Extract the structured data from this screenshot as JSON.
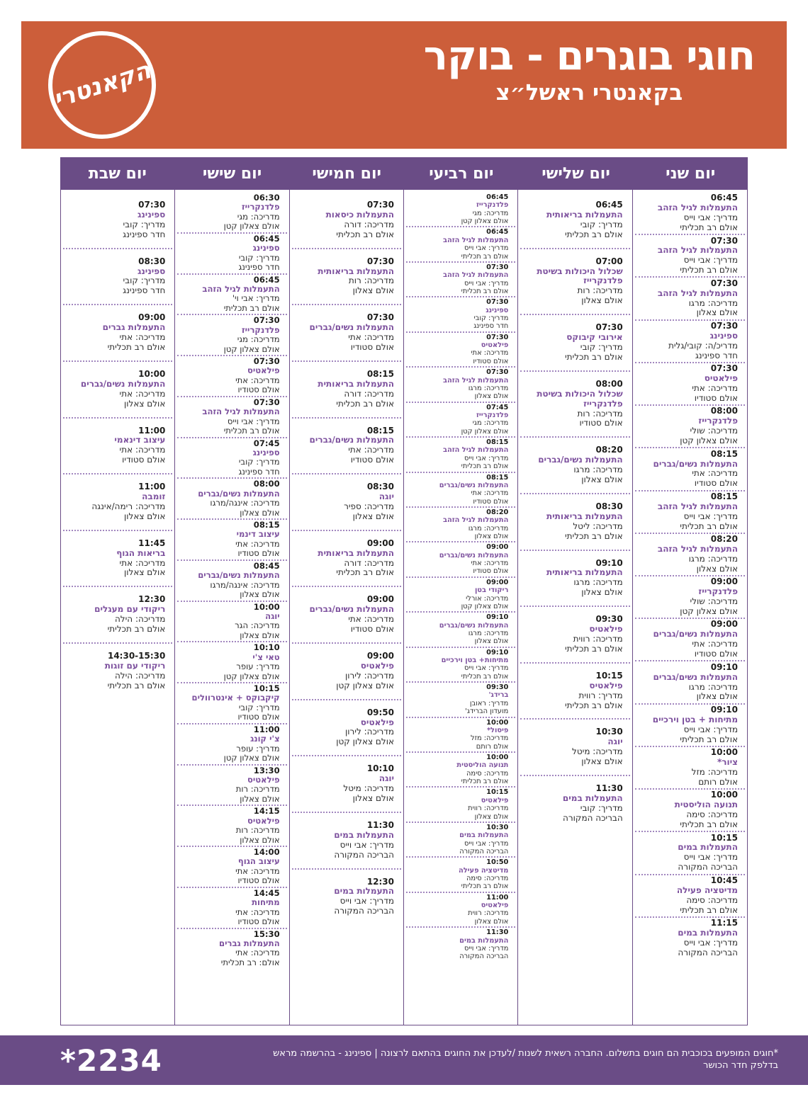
{
  "header": {
    "logo_text": "הקאנטרי",
    "title": "חוגי בוגרים - בוקר",
    "subtitle": "בקאנטרי ראשל״צ"
  },
  "colors": {
    "orange": "#cc5e3a",
    "purple": "#6a4c86",
    "title-purple": "#7d519e",
    "dot": "#a287bf",
    "ink": "#1d1d1b"
  },
  "schedule": {
    "days": [
      {
        "key": "monday",
        "label": "יום שני",
        "classes": [
          {
            "time": "06:45",
            "title": "התעמלות לגיל הזהב",
            "instructor": "מדריך: אבי וייס",
            "location": "אולם רב תכליתי"
          },
          {
            "time": "07:30",
            "title": "התעמלות לגיל הזהב",
            "instructor": "מדריך: אבי וייס",
            "location": "אולם רב תכליתי"
          },
          {
            "time": "07:30",
            "title": "התעמלות לגיל הזהב",
            "instructor": "מדריכה: מרגו",
            "location": "אולם צאלון"
          },
          {
            "time": "07:30",
            "title": "ספינינג",
            "instructor": "מדריכ/ה: קובי/גלית",
            "location": "חדר ספינינג"
          },
          {
            "time": "07:30",
            "title": "פילאטיס",
            "instructor": "מדריכה: אתי",
            "location": "אולם סטודיו"
          },
          {
            "time": "08:00",
            "title": "פלדנקרייז",
            "instructor": "מדריכה: שולי",
            "location": "אולם צאלון קטן"
          },
          {
            "time": "08:15",
            "title": "התעמלות נשים/גברים",
            "instructor": "מדריכה: אתי",
            "location": "אולם סטודיו"
          },
          {
            "time": "08:15",
            "title": "התעמלות לגיל הזהב",
            "instructor": "מדריך: אבי וייס",
            "location": "אולם רב תכליתי"
          },
          {
            "time": "08:20",
            "title": "התעמלות לגיל הזהב",
            "instructor": "מדריכה: מרגו",
            "location": "אולם צאלון"
          },
          {
            "time": "09:00",
            "title": "פלדנקרייז",
            "instructor": "מדריכה: שולי",
            "location": "אולם צאלון קטן"
          },
          {
            "time": "09:00",
            "title": "התעמלות נשים/גברים",
            "instructor": "מדריכה: אתי",
            "location": "אולם סטודיו"
          },
          {
            "time": "09:10",
            "title": "התעמלות נשים/גברים",
            "instructor": "מדריכה: מרגו",
            "location": "אולם צאלון"
          },
          {
            "time": "09:10",
            "title": "מתיחות + בטן וירכיים",
            "instructor": "מדריך: אבי וייס",
            "location": "אולם רב תכליתי"
          },
          {
            "time": "10:00",
            "title": "ציור*",
            "instructor": "מדריכה: מזל",
            "location": "אולם רותם"
          },
          {
            "time": "10:00",
            "title": "תנועה הוליסטית",
            "instructor": "מדריכה: סימה",
            "location": "אולם רב תכליתי"
          },
          {
            "time": "10:15",
            "title": "התעמלות במים",
            "instructor": "מדריך: אבי וייס",
            "location": "הבריכה המקורה"
          },
          {
            "time": "10:45",
            "title": "מדיטציה פעילה",
            "instructor": "מדריכה: סימה",
            "location": "אולם רב תכליתי"
          },
          {
            "time": "11:15",
            "title": "התעמלות במים",
            "instructor": "מדריך: אבי וייס",
            "location": "הבריכה המקורה"
          }
        ]
      },
      {
        "key": "tuesday",
        "label": "יום שלישי",
        "classes": [
          {
            "time": "06:45",
            "title": "התעמלות בריאותית",
            "instructor": "מדריך: קובי",
            "location": "אולם רב תכליתי"
          },
          {
            "time": "07:00",
            "title": "שכלול היכולות בשיטת פלדנקרייז",
            "instructor": "מדריכה: רות",
            "location": "אולם צאלון"
          },
          {
            "time": "07:30",
            "title": "אירובי קיבוקס",
            "instructor": "מדריך: קובי",
            "location": "אולם רב תכליתי"
          },
          {
            "time": "08:00",
            "title": "שכלול היכולות בשיטת פלדנקרייז",
            "instructor": "מדריכה: רות",
            "location": "אולם סטודיו"
          },
          {
            "time": "08:20",
            "title": "התעמלות נשים/גברים",
            "instructor": "מדריכה: מרגו",
            "location": "אולם צאלון"
          },
          {
            "time": "08:30",
            "title": "התעמלות בריאותית",
            "instructor": "מדריכה: ליטל",
            "location": "אולם רב תכליתי"
          },
          {
            "time": "09:10",
            "title": "התעמלות בריאותית",
            "instructor": "מדריכה: מרגו",
            "location": "אולם צאלון"
          },
          {
            "time": "09:30",
            "title": "פילאטיס",
            "instructor": "מדריכה: רווית",
            "location": "אולם רב תכליתי"
          },
          {
            "time": "10:15",
            "title": "פילאטיס",
            "instructor": "מדריך: רווית",
            "location": "אולם רב תכליתי"
          },
          {
            "time": "10:30",
            "title": "יוגה",
            "instructor": "מדריכה: מיטל",
            "location": "אולם צאלון"
          },
          {
            "time": "11:30",
            "title": "התעמלות במים",
            "instructor": "מדריך: קובי",
            "location": "הבריכה המקורה"
          }
        ]
      },
      {
        "key": "wednesday",
        "label": "יום רביעי",
        "classes": [
          {
            "time": "06:45",
            "title": "פלדנקרייז",
            "instructor": "מדריכה: מגי",
            "location": "אולם צאלון קטן"
          },
          {
            "time": "06:45",
            "title": "התעמלות לגיל הזהב",
            "instructor": "מדריך: אבי וייס",
            "location": "אולם רב תכליתי"
          },
          {
            "time": "07:30",
            "title": "התעמלות לגיל הזהב",
            "instructor": "מדריך: אבי וייס",
            "location": "אולם רב תכליתי"
          },
          {
            "time": "07:30",
            "title": "ספינינג",
            "instructor": "מדריך: קובי",
            "location": "חדר ספינינג"
          },
          {
            "time": "07:30",
            "title": "פילאטיס",
            "instructor": "מדריכה: אתי",
            "location": "אולם סטודיו"
          },
          {
            "time": "07:30",
            "title": "התעמלות לגיל הזהב",
            "instructor": "מדריכה: מרגו",
            "location": "אולם צאלון"
          },
          {
            "time": "07:45",
            "title": "פלדנקרייז",
            "instructor": "מדריכה: מגי",
            "location": "אולם צאלון קטן"
          },
          {
            "time": "08:15",
            "title": "התעמלות לגיל הזהב",
            "instructor": "מדריך: אבי וייס",
            "location": "אולם רב תכליתי"
          },
          {
            "time": "08:15",
            "title": "התעמלות נשים/גברים",
            "instructor": "מדריכה: אתי",
            "location": "אולם סטודיו"
          },
          {
            "time": "08:20",
            "title": "התעמלות לגיל הזהב",
            "instructor": "מדריכה: מרגו",
            "location": "אולם צאלון"
          },
          {
            "time": "09:00",
            "title": "התעמלות נשים/גברים",
            "instructor": "מדריכה: אתי",
            "location": "אולם סטודיו"
          },
          {
            "time": "09:00",
            "title": "ריקודי בטן",
            "instructor": "מדריכה: אורלי",
            "location": "אולם צאלון קטן"
          },
          {
            "time": "09:10",
            "title": "התעמלות נשים/גברים",
            "instructor": "מדריכה: מרגו",
            "location": "אולם צאלון"
          },
          {
            "time": "09:10",
            "title": "מתיחות+ בטן וירכיים",
            "instructor": "מדריך: אבי וייס",
            "location": "אולם רב תכליתי"
          },
          {
            "time": "09:30",
            "title": "ברידג'",
            "instructor": "מדריך: ראובן",
            "location": "מועדון הברידג'"
          },
          {
            "time": "10:00",
            "title": "פיסול*",
            "instructor": "מדריכה: מזל",
            "location": "אולם רותם"
          },
          {
            "time": "10:00",
            "title": "תנועה הוליסטית",
            "instructor": "מדריכה: סימה",
            "location": "אולם רב תכליתי"
          },
          {
            "time": "10:15",
            "title": "פילאטיס",
            "instructor": "מדריכה: רווית",
            "location": "אולם צאלון"
          },
          {
            "time": "10:30",
            "title": "התעמלות במים",
            "instructor": "מדריך: אבי וייס",
            "location": "הבריכה המקורה"
          },
          {
            "time": "10:50",
            "title": "מדיטציה פעילה",
            "instructor": "מדריכה: סימה",
            "location": "אולם רב תכליתי"
          },
          {
            "time": "11:00",
            "title": "פילאטיס",
            "instructor": "מדריכה: רווית",
            "location": "אולם צאלון"
          },
          {
            "time": "11:30",
            "title": "התעמלות במים",
            "instructor": "מדריך: אבי וייס",
            "location": "הבריכה המקורה"
          }
        ]
      },
      {
        "key": "thursday",
        "label": "יום חמישי",
        "classes": [
          {
            "time": "07:30",
            "title": "התעמלות כיסאות",
            "instructor": "מדריכה: דורה",
            "location": "אולם רב תכליתי"
          },
          {
            "time": "07:30",
            "title": "התעמלות בריאותית",
            "instructor": "מדריכה: רות",
            "location": "אולם צאלון"
          },
          {
            "time": "07:30",
            "title": "התעמלות נשים/גברים",
            "instructor": "מדריכה: אתי",
            "location": "אולם סטודיו"
          },
          {
            "time": "08:15",
            "title": "התעמלות בריאותית",
            "instructor": "מדריכה: דורה",
            "location": "אולם רב תכליתי"
          },
          {
            "time": "08:15",
            "title": "התעמלות נשים/גברים",
            "instructor": "מדריכה: אתי",
            "location": "אולם סטודיו"
          },
          {
            "time": "08:30",
            "title": "יוגה",
            "instructor": "מדריכה: ספיר",
            "location": "אולם צאלון"
          },
          {
            "time": "09:00",
            "title": "התעמלות בריאותית",
            "instructor": "מדריכה: דורה",
            "location": "אולם רב תכליתי"
          },
          {
            "time": "09:00",
            "title": "התעמלות נשים/גברים",
            "instructor": "מדריכה: אתי",
            "location": "אולם סטודיו"
          },
          {
            "time": "09:00",
            "title": "פילאטיס",
            "instructor": "מדריכה: לירון",
            "location": "אולם צאלון קטן"
          },
          {
            "time": "09:50",
            "title": "פילאטיס",
            "instructor": "מדריכה: לירון",
            "location": "אולם צאלון קטן"
          },
          {
            "time": "10:10",
            "title": "יוגה",
            "instructor": "מדריכה: מיטל",
            "location": "אולם צאלון"
          },
          {
            "time": "11:30",
            "title": "התעמלות במים",
            "instructor": "מדריך: אבי וייס",
            "location": "הבריכה המקורה"
          },
          {
            "time": "12:30",
            "title": "התעמלות במים",
            "instructor": "מדריך: אבי וייס",
            "location": "הבריכה המקורה"
          }
        ]
      },
      {
        "key": "friday",
        "label": "יום שישי",
        "classes": [
          {
            "time": "06:30",
            "title": "פלדנקרייז",
            "instructor": "מדריכה: מגי",
            "location": "אולם צאלון קטן"
          },
          {
            "time": "06:45",
            "title": "ספינינג",
            "instructor": "מדריך: קובי",
            "location": "חדר ספינינג"
          },
          {
            "time": "06:45",
            "title": "התעמלות לגיל הזהב",
            "instructor": "מדריך: אבי וי'",
            "location": "אולם רב תכליתי"
          },
          {
            "time": "07:30",
            "title": "פלדנקרייז",
            "instructor": "מדריכה: מגי",
            "location": "אולם צאלון קטן"
          },
          {
            "time": "07:30",
            "title": "פילאטיס",
            "instructor": "מדריכה: אתי",
            "location": "אולם סטודיו"
          },
          {
            "time": "07:30",
            "title": "התעמלות לגיל הזהב",
            "instructor": "מדריך: אבי וייס",
            "location": "אולם רב תכליתי"
          },
          {
            "time": "07:45",
            "title": "ספינינג",
            "instructor": "מדריך: קובי",
            "location": "חדר ספינינג"
          },
          {
            "time": "08:00",
            "title": "התעמלות נשים/גברים",
            "instructor": "מדריכה: אינגה/מרגו",
            "location": "אולם צאלון"
          },
          {
            "time": "08:15",
            "title": "עיצוב דינמי",
            "instructor": "מדריכה: אתי",
            "location": "אולם סטודיו"
          },
          {
            "time": "08:45",
            "title": "התעמלות נשים/גברים",
            "instructor": "מדריכה: אינגה/מרגו",
            "location": "אולם צאלון"
          },
          {
            "time": "10:00",
            "title": "יוגה",
            "instructor": "מדריכה: הגר",
            "location": "אולם צאלון"
          },
          {
            "time": "10:10",
            "title": "טאי צ'י",
            "instructor": "מדריך: עופר",
            "location": "אולם צאלון קטן"
          },
          {
            "time": "10:15",
            "title": "קיקבוקס + אינטרוולים",
            "instructor": "מדריך: קובי",
            "location": "אולם סטודיו"
          },
          {
            "time": "11:00",
            "title": "צ'י קונג",
            "instructor": "מדריך: עופר",
            "location": "אולם צאלון קטן"
          },
          {
            "time": "13:30",
            "title": "פילאטיס",
            "instructor": "מדריכה: רות",
            "location": "אולם צאלון"
          },
          {
            "time": "14:15",
            "title": "פילאטיס",
            "instructor": "מדריכה: רות",
            "location": "אולם צאלון"
          },
          {
            "time": "14:00",
            "title": "עיצוב הגוף",
            "instructor": "מדריכה: אתי",
            "location": "אולם סטודיו"
          },
          {
            "time": "14:45",
            "title": "מתיחות",
            "instructor": "מדריכה: אתי",
            "location": "אולם סטודיו"
          },
          {
            "time": "15:30",
            "title": "התעמלות גברים",
            "instructor": "מדריכה: אתי",
            "location": "אולם: רב תכליתי"
          }
        ]
      },
      {
        "key": "saturday",
        "label": "יום שבת",
        "classes": [
          {
            "time": "07:30",
            "title": "ספינינג",
            "instructor": "מדריך: קובי",
            "location": "חדר ספינינג"
          },
          {
            "time": "08:30",
            "title": "ספינינג",
            "instructor": "מדריך: קובי",
            "location": "חדר ספינינג"
          },
          {
            "time": "09:00",
            "title": "התעמלות גברים",
            "instructor": "מדריכה: אתי",
            "location": "אולם רב תכליתי"
          },
          {
            "time": "10:00",
            "title": "התעמלות נשים/גברים",
            "instructor": "מדריכה: אתי",
            "location": "אולם צאלון"
          },
          {
            "time": "11:00",
            "title": "עיצוב דינאמי",
            "instructor": "מדריכה: אתי",
            "location": "אולם סטודיו"
          },
          {
            "time": "11:00",
            "title": "זומבה",
            "instructor": "מדריכה: רימה/אינגה",
            "location": "אולם צאלון"
          },
          {
            "time": "11:45",
            "title": "בריאות הגוף",
            "instructor": "מדריכה: אתי",
            "location": "אולם צאלון"
          },
          {
            "time": "12:30",
            "title": "ריקודי עם מעגלים",
            "instructor": "מדריכה: הילה",
            "location": "אולם רב תכליתי"
          },
          {
            "time": "14:30-15:30",
            "title": "ריקודי עם זוגות",
            "instructor": "מדריכה: הילה",
            "location": "אולם רב תכליתי"
          }
        ]
      }
    ]
  },
  "footer": {
    "phone": "*2234",
    "disclaimer": "*חוגים המופעים בכוכבית הם חוגים בתשלום. החברה רשאית לשנות /לעדכן את החוגים בהתאם לרצונה | ספינינג - בהרשמה מראש בדלפק חדר הכושר"
  }
}
